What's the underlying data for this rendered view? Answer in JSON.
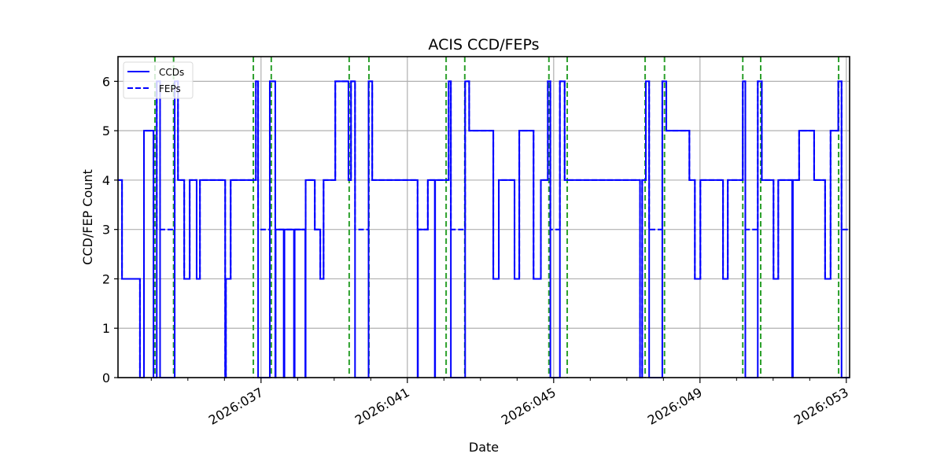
{
  "chart_data": {
    "type": "line",
    "title": "ACIS CCD/FEPs",
    "xlabel": "Date",
    "ylabel": "CCD/FEP Count",
    "xlim": [
      33.09,
      53.09
    ],
    "ylim": [
      0,
      6.5
    ],
    "grid": true,
    "legend_position": "upper left",
    "x_ticks": [
      {
        "value": 37,
        "label": "2026:037"
      },
      {
        "value": 41,
        "label": "2026:041"
      },
      {
        "value": 45,
        "label": "2026:045"
      },
      {
        "value": 49,
        "label": "2026:049"
      },
      {
        "value": 53,
        "label": "2026:053"
      }
    ],
    "x_minor_ticks": [
      34,
      35,
      36,
      38,
      39,
      40,
      42,
      43,
      44,
      46,
      47,
      48,
      50,
      51,
      52
    ],
    "y_ticks": [
      0,
      1,
      2,
      3,
      4,
      5,
      6
    ],
    "colors": {
      "ccd": "#0000ff",
      "fep": "#0000ff",
      "vline": "#2ca02c",
      "grid": "#b0b0b0"
    },
    "series": [
      {
        "name": "CCDs",
        "style": "solid",
        "steps": [
          [
            33.09,
            4
          ],
          [
            33.2,
            2
          ],
          [
            33.69,
            0
          ],
          [
            33.8,
            5
          ],
          [
            34.06,
            0
          ],
          [
            34.15,
            6
          ],
          [
            34.24,
            0
          ],
          [
            34.64,
            6
          ],
          [
            34.73,
            4
          ],
          [
            34.9,
            2
          ],
          [
            35.05,
            4
          ],
          [
            35.24,
            2
          ],
          [
            35.33,
            4
          ],
          [
            36.02,
            0
          ],
          [
            36.04,
            2
          ],
          [
            36.17,
            4
          ],
          [
            36.86,
            6
          ],
          [
            36.92,
            0
          ],
          [
            37.24,
            6
          ],
          [
            37.39,
            3
          ],
          [
            37.39,
            0
          ],
          [
            37.4,
            3
          ],
          [
            37.62,
            0
          ],
          [
            37.64,
            3
          ],
          [
            37.9,
            0
          ],
          [
            37.92,
            3
          ],
          [
            38.21,
            0
          ],
          [
            38.22,
            4
          ],
          [
            38.47,
            3
          ],
          [
            38.62,
            2
          ],
          [
            38.71,
            4
          ],
          [
            39.03,
            6
          ],
          [
            39.39,
            4
          ],
          [
            39.46,
            6
          ],
          [
            39.57,
            0
          ],
          [
            39.94,
            6
          ],
          [
            40.04,
            4
          ],
          [
            41.28,
            0
          ],
          [
            41.29,
            3
          ],
          [
            41.56,
            4
          ],
          [
            41.75,
            0
          ],
          [
            41.76,
            4
          ],
          [
            42.13,
            6
          ],
          [
            42.19,
            0
          ],
          [
            42.58,
            6
          ],
          [
            42.69,
            5
          ],
          [
            43.35,
            2
          ],
          [
            43.5,
            4
          ],
          [
            43.93,
            2
          ],
          [
            44.06,
            5
          ],
          [
            44.45,
            2
          ],
          [
            44.65,
            4
          ],
          [
            44.84,
            6
          ],
          [
            44.91,
            0
          ],
          [
            45.17,
            6
          ],
          [
            45.3,
            4
          ],
          [
            47.36,
            0
          ],
          [
            47.42,
            4
          ],
          [
            47.52,
            6
          ],
          [
            47.61,
            0
          ],
          [
            47.97,
            6
          ],
          [
            48.08,
            5
          ],
          [
            48.71,
            4
          ],
          [
            48.86,
            2
          ],
          [
            49.01,
            4
          ],
          [
            49.63,
            2
          ],
          [
            49.76,
            4
          ],
          [
            50.17,
            6
          ],
          [
            50.24,
            0
          ],
          [
            50.58,
            6
          ],
          [
            50.69,
            4
          ],
          [
            51.01,
            2
          ],
          [
            51.14,
            4
          ],
          [
            51.52,
            0
          ],
          [
            51.54,
            4
          ],
          [
            51.71,
            5
          ],
          [
            52.12,
            4
          ],
          [
            52.42,
            2
          ],
          [
            52.57,
            5
          ],
          [
            52.78,
            6
          ],
          [
            52.87,
            0
          ],
          [
            53.09,
            0
          ]
        ]
      },
      {
        "name": "FEPs",
        "style": "dashed",
        "steps": [
          [
            33.09,
            4
          ],
          [
            33.2,
            2
          ],
          [
            33.69,
            0
          ],
          [
            33.8,
            5
          ],
          [
            34.06,
            3
          ],
          [
            34.15,
            6
          ],
          [
            34.24,
            3
          ],
          [
            34.64,
            6
          ],
          [
            34.73,
            4
          ],
          [
            34.9,
            2
          ],
          [
            35.05,
            4
          ],
          [
            35.24,
            2
          ],
          [
            35.33,
            4
          ],
          [
            36.02,
            0
          ],
          [
            36.04,
            2
          ],
          [
            36.17,
            4
          ],
          [
            36.86,
            6
          ],
          [
            36.92,
            3
          ],
          [
            37.24,
            6
          ],
          [
            37.39,
            3
          ],
          [
            38.22,
            4
          ],
          [
            38.47,
            3
          ],
          [
            38.62,
            2
          ],
          [
            38.71,
            4
          ],
          [
            39.03,
            6
          ],
          [
            39.39,
            4
          ],
          [
            39.46,
            6
          ],
          [
            39.57,
            3
          ],
          [
            39.94,
            6
          ],
          [
            40.04,
            4
          ],
          [
            41.28,
            3
          ],
          [
            41.56,
            4
          ],
          [
            42.13,
            6
          ],
          [
            42.19,
            3
          ],
          [
            42.58,
            6
          ],
          [
            42.69,
            5
          ],
          [
            43.35,
            2
          ],
          [
            43.5,
            4
          ],
          [
            43.93,
            2
          ],
          [
            44.06,
            5
          ],
          [
            44.45,
            2
          ],
          [
            44.65,
            4
          ],
          [
            44.84,
            6
          ],
          [
            44.91,
            3
          ],
          [
            45.17,
            6
          ],
          [
            45.3,
            4
          ],
          [
            47.36,
            0
          ],
          [
            47.42,
            4
          ],
          [
            47.52,
            6
          ],
          [
            47.61,
            3
          ],
          [
            47.97,
            6
          ],
          [
            48.08,
            5
          ],
          [
            48.71,
            4
          ],
          [
            48.86,
            2
          ],
          [
            49.01,
            4
          ],
          [
            49.63,
            2
          ],
          [
            49.76,
            4
          ],
          [
            50.17,
            6
          ],
          [
            50.24,
            3
          ],
          [
            50.58,
            6
          ],
          [
            50.69,
            4
          ],
          [
            51.01,
            2
          ],
          [
            51.14,
            4
          ],
          [
            51.71,
            5
          ],
          [
            52.12,
            4
          ],
          [
            52.42,
            2
          ],
          [
            52.57,
            5
          ],
          [
            52.78,
            6
          ],
          [
            52.87,
            3
          ],
          [
            53.09,
            3
          ]
        ]
      }
    ],
    "vertical_lines": [
      34.1,
      34.61,
      36.79,
      37.28,
      39.41,
      39.95,
      42.06,
      42.57,
      44.87,
      45.37,
      47.5,
      48.03,
      50.17,
      50.66,
      52.79
    ],
    "legend": [
      {
        "label": "CCDs",
        "style": "solid"
      },
      {
        "label": "FEPs",
        "style": "dashed"
      }
    ]
  }
}
